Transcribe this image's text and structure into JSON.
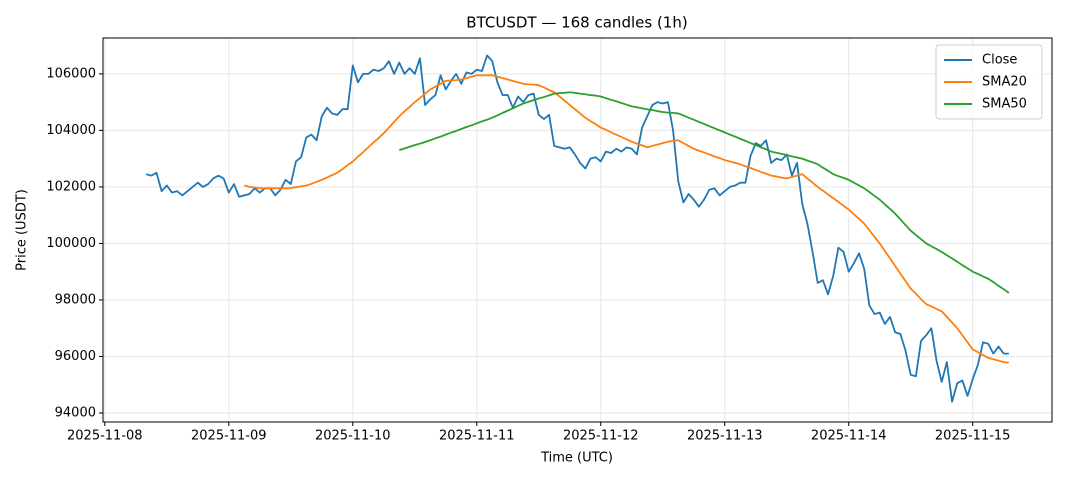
{
  "chart_data": {
    "type": "line",
    "title": "BTCUSDT — 168 candles (1h)",
    "x_label": "Time (UTC)",
    "y_label": "Price (USDT)",
    "x": [
      "2025-11-08 08:00",
      "2025-11-08 09:00",
      "2025-11-08 10:00",
      "2025-11-08 11:00",
      "2025-11-08 12:00",
      "2025-11-08 13:00",
      "2025-11-08 14:00",
      "2025-11-08 15:00",
      "2025-11-08 16:00",
      "2025-11-08 17:00",
      "2025-11-08 18:00",
      "2025-11-08 19:00",
      "2025-11-08 20:00",
      "2025-11-08 21:00",
      "2025-11-08 22:00",
      "2025-11-08 23:00",
      "2025-11-09 00:00",
      "2025-11-09 01:00",
      "2025-11-09 02:00",
      "2025-11-09 03:00",
      "2025-11-09 04:00",
      "2025-11-09 05:00",
      "2025-11-09 06:00",
      "2025-11-09 07:00",
      "2025-11-09 08:00",
      "2025-11-09 09:00",
      "2025-11-09 10:00",
      "2025-11-09 11:00",
      "2025-11-09 12:00",
      "2025-11-09 13:00",
      "2025-11-09 14:00",
      "2025-11-09 15:00",
      "2025-11-09 16:00",
      "2025-11-09 17:00",
      "2025-11-09 18:00",
      "2025-11-09 19:00",
      "2025-11-09 20:00",
      "2025-11-09 21:00",
      "2025-11-09 22:00",
      "2025-11-09 23:00",
      "2025-11-10 00:00",
      "2025-11-10 01:00",
      "2025-11-10 02:00",
      "2025-11-10 03:00",
      "2025-11-10 04:00",
      "2025-11-10 05:00",
      "2025-11-10 06:00",
      "2025-11-10 07:00",
      "2025-11-10 08:00",
      "2025-11-10 09:00",
      "2025-11-10 10:00",
      "2025-11-10 11:00",
      "2025-11-10 12:00",
      "2025-11-10 13:00",
      "2025-11-10 14:00",
      "2025-11-10 15:00",
      "2025-11-10 16:00",
      "2025-11-10 17:00",
      "2025-11-10 18:00",
      "2025-11-10 19:00",
      "2025-11-10 20:00",
      "2025-11-10 21:00",
      "2025-11-10 22:00",
      "2025-11-10 23:00",
      "2025-11-11 00:00",
      "2025-11-11 01:00",
      "2025-11-11 02:00",
      "2025-11-11 03:00",
      "2025-11-11 04:00",
      "2025-11-11 05:00",
      "2025-11-11 06:00",
      "2025-11-11 07:00",
      "2025-11-11 08:00",
      "2025-11-11 09:00",
      "2025-11-11 10:00",
      "2025-11-11 11:00",
      "2025-11-11 12:00",
      "2025-11-11 13:00",
      "2025-11-11 14:00",
      "2025-11-11 15:00",
      "2025-11-11 16:00",
      "2025-11-11 17:00",
      "2025-11-11 18:00",
      "2025-11-11 19:00",
      "2025-11-11 20:00",
      "2025-11-11 21:00",
      "2025-11-11 22:00",
      "2025-11-11 23:00",
      "2025-11-12 00:00",
      "2025-11-12 01:00",
      "2025-11-12 02:00",
      "2025-11-12 03:00",
      "2025-11-12 04:00",
      "2025-11-12 05:00",
      "2025-11-12 06:00",
      "2025-11-12 07:00",
      "2025-11-12 08:00",
      "2025-11-12 09:00",
      "2025-11-12 10:00",
      "2025-11-12 11:00",
      "2025-11-12 12:00",
      "2025-11-12 13:00",
      "2025-11-12 14:00",
      "2025-11-12 15:00",
      "2025-11-12 16:00",
      "2025-11-12 17:00",
      "2025-11-12 18:00",
      "2025-11-12 19:00",
      "2025-11-12 20:00",
      "2025-11-12 21:00",
      "2025-11-12 22:00",
      "2025-11-12 23:00",
      "2025-11-13 00:00",
      "2025-11-13 01:00",
      "2025-11-13 02:00",
      "2025-11-13 03:00",
      "2025-11-13 04:00",
      "2025-11-13 05:00",
      "2025-11-13 06:00",
      "2025-11-13 07:00",
      "2025-11-13 08:00",
      "2025-11-13 09:00",
      "2025-11-13 10:00",
      "2025-11-13 11:00",
      "2025-11-13 12:00",
      "2025-11-13 13:00",
      "2025-11-13 14:00",
      "2025-11-13 15:00",
      "2025-11-13 16:00",
      "2025-11-13 17:00",
      "2025-11-13 18:00",
      "2025-11-13 19:00",
      "2025-11-13 20:00",
      "2025-11-13 21:00",
      "2025-11-13 22:00",
      "2025-11-13 23:00",
      "2025-11-14 00:00",
      "2025-11-14 01:00",
      "2025-11-14 02:00",
      "2025-11-14 03:00",
      "2025-11-14 04:00",
      "2025-11-14 05:00",
      "2025-11-14 06:00",
      "2025-11-14 07:00",
      "2025-11-14 08:00",
      "2025-11-14 09:00",
      "2025-11-14 10:00",
      "2025-11-14 11:00",
      "2025-11-14 12:00",
      "2025-11-14 13:00",
      "2025-11-14 14:00",
      "2025-11-14 15:00",
      "2025-11-14 16:00",
      "2025-11-14 17:00",
      "2025-11-14 18:00",
      "2025-11-14 19:00",
      "2025-11-14 20:00",
      "2025-11-14 21:00",
      "2025-11-14 22:00",
      "2025-11-14 23:00",
      "2025-11-15 00:00",
      "2025-11-15 01:00",
      "2025-11-15 02:00",
      "2025-11-15 03:00",
      "2025-11-15 04:00",
      "2025-11-15 05:00",
      "2025-11-15 06:00",
      "2025-11-15 07:00"
    ],
    "series": [
      {
        "name": "Close",
        "color": "#1f77b4",
        "values": [
          102450,
          102400,
          102500,
          101850,
          102050,
          101800,
          101850,
          101700,
          101850,
          102000,
          102150,
          102000,
          102100,
          102300,
          102400,
          102300,
          101800,
          102100,
          101650,
          101700,
          101750,
          101950,
          101800,
          101950,
          101950,
          101700,
          101900,
          102250,
          102100,
          102900,
          103050,
          103750,
          103850,
          103650,
          104500,
          104800,
          104600,
          104550,
          104750,
          104750,
          106300,
          105700,
          106000,
          106000,
          106150,
          106100,
          106200,
          106450,
          106000,
          106400,
          106000,
          106200,
          106000,
          106550,
          104900,
          105100,
          105250,
          105950,
          105450,
          105750,
          106000,
          105650,
          106050,
          106000,
          106150,
          106100,
          106650,
          106450,
          105700,
          105250,
          105250,
          104800,
          105200,
          105000,
          105250,
          105300,
          104550,
          104400,
          104550,
          103450,
          103400,
          103350,
          103400,
          103150,
          102850,
          102650,
          103000,
          103050,
          102900,
          103250,
          103200,
          103350,
          103250,
          103400,
          103350,
          103150,
          104100,
          104500,
          104900,
          105000,
          104950,
          105000,
          104000,
          102200,
          101450,
          101750,
          101550,
          101300,
          101550,
          101900,
          101950,
          101700,
          101850,
          102000,
          102050,
          102150,
          102150,
          103100,
          103550,
          103450,
          103650,
          102850,
          103000,
          102950,
          103150,
          102400,
          102850,
          101400,
          100700,
          99700,
          98600,
          98700,
          98200,
          98850,
          99850,
          99700,
          99000,
          99300,
          99650,
          99100,
          97800,
          97500,
          97550,
          97150,
          97400,
          96850,
          96800,
          96200,
          95350,
          95300,
          96550,
          96750,
          97000,
          95850,
          95100,
          95800,
          94400,
          95050,
          95150,
          94600,
          95200,
          95700,
          96500,
          96450,
          96100,
          96350,
          96100,
          96100
        ]
      },
      {
        "name": "SMA20",
        "color": "#ff7f0e",
        "values": [
          null,
          null,
          null,
          null,
          null,
          null,
          null,
          null,
          null,
          null,
          null,
          null,
          null,
          null,
          null,
          null,
          null,
          null,
          null,
          102050,
          102000,
          101980,
          101950,
          101950,
          101950,
          101950,
          101950,
          101950,
          101960,
          101990,
          102020,
          102050,
          102110,
          102180,
          102250,
          102330,
          102420,
          102500,
          102630,
          102770,
          102900,
          103070,
          103230,
          103400,
          103570,
          103730,
          103900,
          104100,
          104300,
          104500,
          104670,
          104830,
          105000,
          105150,
          105300,
          105450,
          105550,
          105650,
          105750,
          105770,
          105780,
          105800,
          105850,
          105900,
          105950,
          105950,
          105950,
          105950,
          105900,
          105850,
          105800,
          105750,
          105700,
          105650,
          105630,
          105620,
          105600,
          105520,
          105430,
          105350,
          105200,
          105050,
          104900,
          104750,
          104600,
          104450,
          104330,
          104220,
          104100,
          104020,
          103930,
          103850,
          103770,
          103680,
          103600,
          103530,
          103470,
          103400,
          103450,
          103500,
          103550,
          103600,
          103630,
          103650,
          103550,
          103450,
          103350,
          103280,
          103220,
          103150,
          103080,
          103020,
          102950,
          102900,
          102850,
          102800,
          102730,
          102670,
          102600,
          102530,
          102470,
          102400,
          102370,
          102330,
          102300,
          102350,
          102400,
          102450,
          102300,
          102150,
          102000,
          101870,
          101730,
          101600,
          101470,
          101330,
          101200,
          101030,
          100870,
          100700,
          100470,
          100230,
          100000,
          99730,
          99470,
          99200,
          98930,
          98670,
          98400,
          98220,
          98030,
          97850,
          97770,
          97680,
          97600,
          97400,
          97200,
          97000,
          96750,
          96500,
          96250,
          96150,
          96050,
          95950,
          95900,
          95850,
          95800,
          95780
        ]
      },
      {
        "name": "SMA50",
        "color": "#2ca02c",
        "values": [
          null,
          null,
          null,
          null,
          null,
          null,
          null,
          null,
          null,
          null,
          null,
          null,
          null,
          null,
          null,
          null,
          null,
          null,
          null,
          null,
          null,
          null,
          null,
          null,
          null,
          null,
          null,
          null,
          null,
          null,
          null,
          null,
          null,
          null,
          null,
          null,
          null,
          null,
          null,
          null,
          null,
          null,
          null,
          null,
          null,
          null,
          null,
          null,
          null,
          103300,
          103360,
          103420,
          103480,
          103530,
          103590,
          103650,
          103720,
          103780,
          103850,
          103920,
          103980,
          104050,
          104120,
          104180,
          104250,
          104320,
          104380,
          104450,
          104530,
          104620,
          104700,
          104780,
          104870,
          104950,
          105010,
          105070,
          105130,
          105180,
          105240,
          105300,
          105320,
          105330,
          105350,
          105330,
          105300,
          105280,
          105250,
          105230,
          105200,
          105140,
          105080,
          105030,
          104970,
          104910,
          104850,
          104820,
          104780,
          104750,
          104720,
          104680,
          104650,
          104630,
          104620,
          104600,
          104530,
          104450,
          104380,
          104300,
          104230,
          104150,
          104080,
          104000,
          103930,
          103850,
          103780,
          103700,
          103630,
          103550,
          103480,
          103400,
          103330,
          103250,
          103210,
          103170,
          103130,
          103080,
          103040,
          103000,
          102930,
          102870,
          102800,
          102680,
          102570,
          102450,
          102380,
          102320,
          102250,
          102150,
          102050,
          101950,
          101820,
          101680,
          101550,
          101380,
          101220,
          101050,
          100850,
          100650,
          100450,
          100300,
          100150,
          100000,
          99900,
          99800,
          99700,
          99580,
          99470,
          99350,
          99230,
          99120,
          99000,
          98920,
          98830,
          98750,
          98630,
          98500,
          98380,
          98250
        ]
      }
    ],
    "xlim": [
      "2025-11-07 23:39",
      "2025-11-15 15:21"
    ],
    "xticks": [
      "2025-11-08",
      "2025-11-09",
      "2025-11-10",
      "2025-11-11",
      "2025-11-12",
      "2025-11-13",
      "2025-11-14",
      "2025-11-15"
    ],
    "ylim": [
      93680,
      107270
    ],
    "yticks": [
      94000,
      96000,
      98000,
      100000,
      102000,
      104000,
      106000
    ],
    "grid": true,
    "legend": "upper right"
  }
}
